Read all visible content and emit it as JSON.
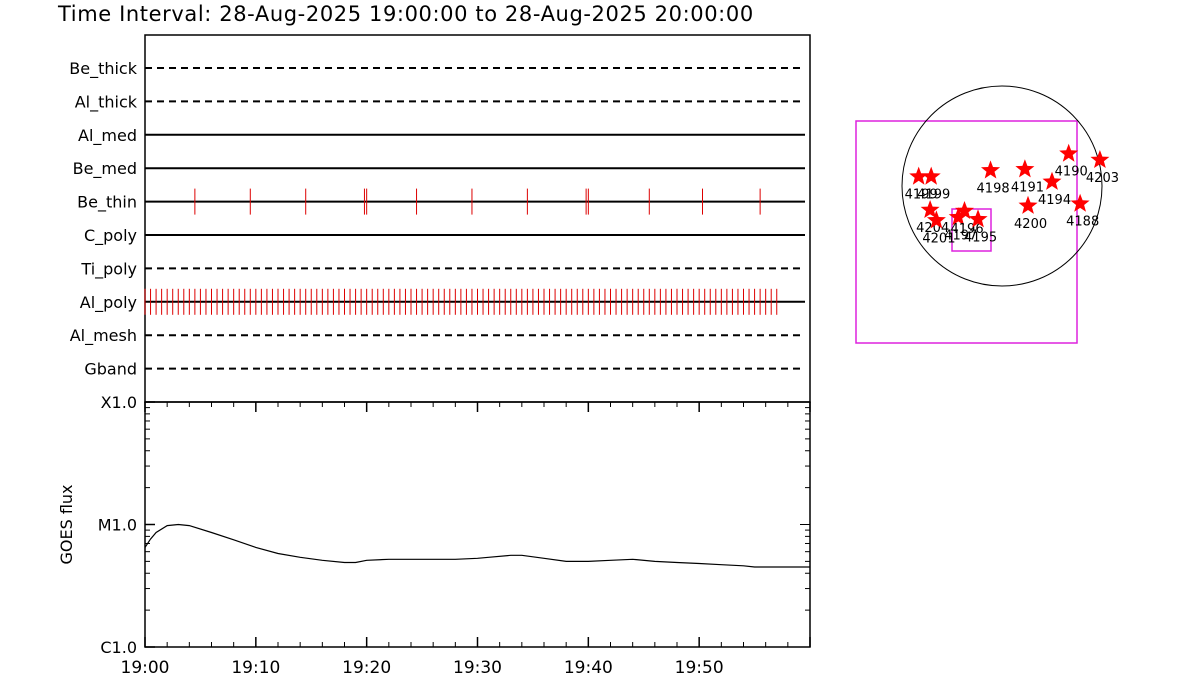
{
  "title": "Time Interval: 28-Aug-2025 19:00:00 to 28-Aug-2025 20:00:00",
  "colors": {
    "event": "#dd0000",
    "box": "#dd22dd",
    "axis": "#000000",
    "star": "#ff0000"
  },
  "chart_data": [
    {
      "type": "timeline",
      "subject": "filter usage",
      "time_range": [
        "19:00",
        "20:00"
      ],
      "rows": [
        {
          "name": "Be_thick",
          "style": "dashed",
          "events": []
        },
        {
          "name": "Al_thick",
          "style": "dashed",
          "events": []
        },
        {
          "name": "Al_med",
          "style": "solid",
          "events": []
        },
        {
          "name": "Be_med",
          "style": "solid",
          "events": []
        },
        {
          "name": "Be_thin",
          "style": "solid",
          "events": [
            4.5,
            9.5,
            14.5,
            19.8,
            20.0,
            24.5,
            29.5,
            34.5,
            39.8,
            40.0,
            45.5,
            50.3,
            55.5
          ]
        },
        {
          "name": "C_poly",
          "style": "solid",
          "events": []
        },
        {
          "name": "Ti_poly",
          "style": "dashed",
          "events": []
        },
        {
          "name": "Al_poly",
          "style": "solid",
          "events": "dense",
          "event_start": 0.0,
          "event_end": 57.0,
          "event_step": 0.5
        },
        {
          "name": "Al_mesh",
          "style": "dashed",
          "events": []
        },
        {
          "name": "Gband",
          "style": "dashed",
          "events": []
        }
      ]
    },
    {
      "type": "line",
      "ylabel": "GOES flux",
      "y_scale": "log",
      "ytick_labels": [
        "C1.0",
        "M1.0",
        "X1.0"
      ],
      "ytick_values": [
        1e-06,
        1e-05,
        0.0001
      ],
      "ylim": [
        1e-06,
        0.0001
      ],
      "xtick_labels": [
        "19:00",
        "19:10",
        "19:20",
        "19:30",
        "19:40",
        "19:50"
      ],
      "xtick_values": [
        0,
        10,
        20,
        30,
        40,
        50
      ],
      "xlim": [
        0,
        60
      ],
      "series": [
        {
          "x": [
            0,
            0.5,
            1,
            2,
            3,
            4,
            6,
            8,
            10,
            12,
            14,
            16,
            18,
            19,
            20,
            22,
            24,
            26,
            28,
            30,
            31,
            33,
            34,
            36,
            38,
            40,
            42,
            44,
            46,
            48,
            50,
            52,
            54,
            55,
            56,
            58,
            60
          ],
          "y": [
            6.5e-06,
            7.6e-06,
            8.6e-06,
            9.8e-06,
            1e-05,
            9.8e-06,
            8.6e-06,
            7.5e-06,
            6.5e-06,
            5.8e-06,
            5.4e-06,
            5.1e-06,
            4.9e-06,
            4.9e-06,
            5.1e-06,
            5.2e-06,
            5.2e-06,
            5.2e-06,
            5.2e-06,
            5.3e-06,
            5.4e-06,
            5.6e-06,
            5.6e-06,
            5.3e-06,
            5e-06,
            5e-06,
            5.1e-06,
            5.2e-06,
            5e-06,
            4.9e-06,
            4.8e-06,
            4.7e-06,
            4.6e-06,
            4.5e-06,
            4.5e-06,
            4.5e-06,
            4.5e-06
          ]
        }
      ]
    },
    {
      "type": "map",
      "subject": "solar disk with field of view and active regions",
      "regions": [
        {
          "label": "4199",
          "x": -800,
          "y": 90
        },
        {
          "label": "4199",
          "x": -680,
          "y": 90
        },
        {
          "label": "4198",
          "x": -110,
          "y": 150
        },
        {
          "label": "4191",
          "x": 220,
          "y": 160
        },
        {
          "label": "4190",
          "x": 640,
          "y": 310
        },
        {
          "label": "4203",
          "x": 940,
          "y": 250
        },
        {
          "label": "4194",
          "x": 480,
          "y": 40
        },
        {
          "label": "4200",
          "x": 250,
          "y": -190
        },
        {
          "label": "4188",
          "x": 750,
          "y": -170
        },
        {
          "label": "4204",
          "x": -690,
          "y": -230
        },
        {
          "label": "4201",
          "x": -630,
          "y": -330
        },
        {
          "label": "4197",
          "x": -420,
          "y": -300
        },
        {
          "label": "4196",
          "x": -360,
          "y": -240
        },
        {
          "label": "4195",
          "x": -230,
          "y": -320
        }
      ]
    }
  ]
}
